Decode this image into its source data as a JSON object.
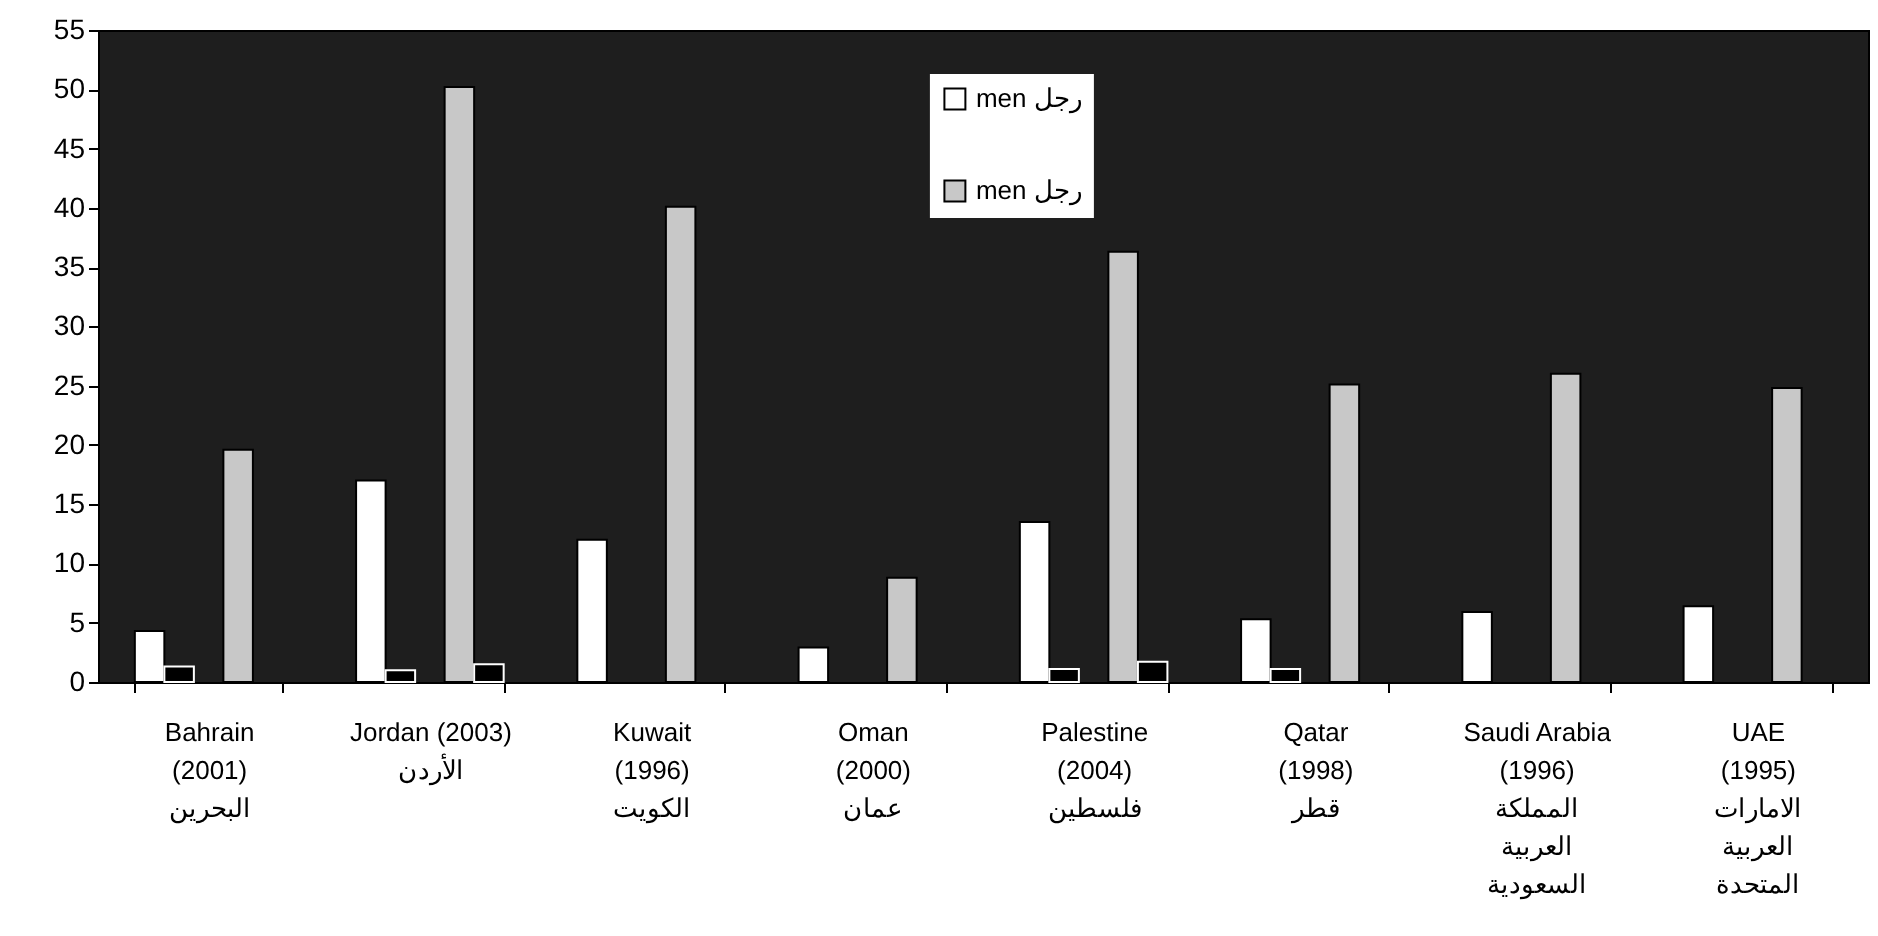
{
  "chart_data": {
    "type": "bar",
    "categories": [
      "Bahrain\n(2001)\n\nالبحرين",
      "Jordan (2003)\n\nالأردن",
      "Kuwait\n(1996)\n\nالكويت",
      "Oman\n(2000)\n\nعمان",
      "Palestine\n(2004)\n\nفلسطين",
      "Qatar\n(1998)\n\nقطر",
      "Saudi Arabia\n(1996)\n\nالمملكة\nالعربية\nالسعودية",
      "UAE\n(1995)\n\nالامارات\nالعربية\nالمتحدة"
    ],
    "series": [
      {
        "name": "men رجل",
        "color": "#ffffff",
        "values": [
          4.3,
          17.0,
          12.0,
          2.9,
          13.5,
          5.3,
          5.9,
          6.4
        ]
      },
      {
        "color": "#000000",
        "values": [
          1.3,
          1.0,
          null,
          null,
          1.1,
          1.1,
          null,
          null
        ]
      },
      {
        "color": "#000000",
        "values": [
          null,
          null,
          null,
          null,
          null,
          null,
          null,
          null
        ]
      },
      {
        "name": "men رجل",
        "color": "#c8c8c8",
        "values": [
          19.6,
          50.2,
          40.1,
          8.8,
          36.3,
          25.1,
          26.0,
          24.8
        ]
      },
      {
        "color": "#000000",
        "values": [
          null,
          1.5,
          null,
          null,
          1.7,
          null,
          null,
          null
        ]
      }
    ],
    "ylim": [
      0,
      55
    ],
    "yticks": [
      0,
      5,
      10,
      15,
      20,
      25,
      30,
      35,
      40,
      45,
      50,
      55
    ],
    "legend": "top"
  }
}
